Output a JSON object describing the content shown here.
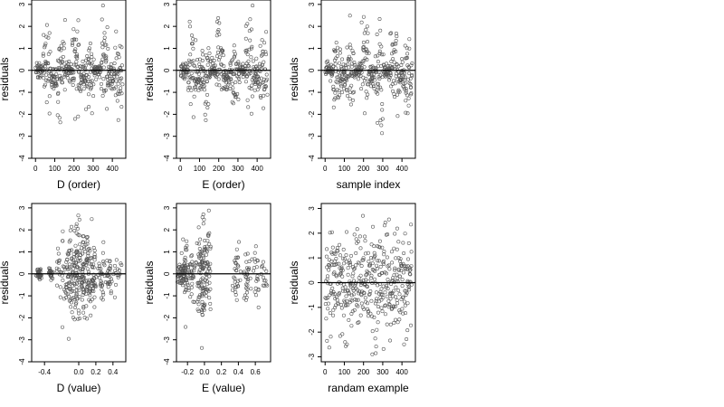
{
  "chart_data": [
    {
      "type": "scatter",
      "xlabel": "D (order)",
      "ylabel": "residuals",
      "xlim": [
        -20,
        470
      ],
      "ylim": [
        -4,
        3.2
      ],
      "xticks": [
        "0",
        "100",
        "200",
        "300",
        "400"
      ],
      "yticks": [
        "-4",
        "-3",
        "-2",
        "-1",
        "0",
        "1",
        "2",
        "3"
      ],
      "hline": 0,
      "n_points": 420,
      "pattern": "order"
    },
    {
      "type": "scatter",
      "xlabel": "E (order)",
      "ylabel": "residuals",
      "xlim": [
        -20,
        470
      ],
      "ylim": [
        -4,
        3.2
      ],
      "xticks": [
        "0",
        "100",
        "200",
        "300",
        "400"
      ],
      "yticks": [
        "-4",
        "-3",
        "-2",
        "-1",
        "0",
        "1",
        "2",
        "3"
      ],
      "hline": 0,
      "n_points": 420,
      "pattern": "order"
    },
    {
      "type": "scatter",
      "xlabel": "sample index",
      "ylabel": "residuals",
      "xlim": [
        -20,
        470
      ],
      "ylim": [
        -4,
        3.2
      ],
      "xticks": [
        "0",
        "100",
        "200",
        "300",
        "400"
      ],
      "yticks": [
        "-4",
        "-3",
        "-2",
        "-1",
        "0",
        "1",
        "2",
        "3"
      ],
      "hline": 0,
      "n_points": 420,
      "pattern": "order"
    },
    {
      "type": "scatter",
      "xlabel": "D (value)",
      "ylabel": "residuals",
      "xlim": [
        -0.55,
        0.55
      ],
      "ylim": [
        -4,
        3.2
      ],
      "xticks": [
        "-0.4",
        "0.0",
        "0.2",
        "0.4"
      ],
      "xtick_values": [
        -0.4,
        0.0,
        0.2,
        0.4
      ],
      "yticks": [
        "-4",
        "-3",
        "-2",
        "-1",
        "0",
        "1",
        "2",
        "3"
      ],
      "hline": 0,
      "n_points": 420,
      "pattern": "d-value"
    },
    {
      "type": "scatter",
      "xlabel": "E (value)",
      "ylabel": "residuals",
      "xlim": [
        -0.33,
        0.78
      ],
      "ylim": [
        -4,
        3.2
      ],
      "xticks": [
        "-0.2",
        "0.0",
        "0.2",
        "0.4",
        "0.6"
      ],
      "xtick_values": [
        -0.2,
        0.0,
        0.2,
        0.4,
        0.6
      ],
      "yticks": [
        "-4",
        "-3",
        "-2",
        "-1",
        "0",
        "1",
        "2",
        "3"
      ],
      "hline": 0,
      "n_points": 420,
      "pattern": "e-value"
    },
    {
      "type": "scatter",
      "xlabel": "randam example",
      "ylabel": "residuals",
      "xlim": [
        -20,
        470
      ],
      "ylim": [
        -3.2,
        3.2
      ],
      "xticks": [
        "0",
        "100",
        "200",
        "300",
        "400"
      ],
      "yticks": [
        "-3",
        "-2",
        "-1",
        "0",
        "1",
        "2",
        "3"
      ],
      "hline": 0,
      "n_points": 420,
      "pattern": "random"
    }
  ]
}
